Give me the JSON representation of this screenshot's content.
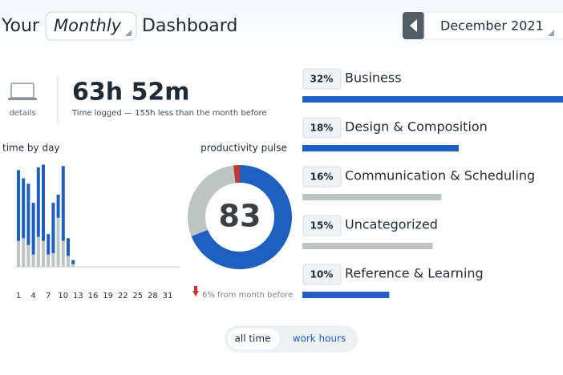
{
  "header": {
    "prefix": "Your",
    "period": "Monthly",
    "suffix": "Dashboard",
    "date": "December 2021"
  },
  "summary": {
    "details": "details",
    "total": "63h 52m",
    "note": "Time logged — 155h less than the month before"
  },
  "chart_data": [
    {
      "type": "bar",
      "stacked": true,
      "title": "time by day",
      "categories": [
        1,
        null,
        null,
        4,
        null,
        null,
        7,
        null,
        null,
        10,
        null,
        null,
        13,
        null,
        null,
        16,
        null,
        null,
        19,
        null,
        null,
        22,
        null,
        null,
        25,
        null,
        null,
        28,
        null,
        null,
        31
      ],
      "series": [
        {
          "color": "#bcc5c2",
          "values": [
            1.9,
            2.1,
            1.6,
            0.9,
            2.2,
            1.9,
            0.9,
            1.0,
            3.6,
            1.9,
            0.8,
            0.2,
            0,
            0,
            0,
            0,
            0,
            0,
            0,
            0,
            0,
            0,
            0,
            0,
            0,
            0,
            0,
            0,
            0,
            0,
            0
          ]
        },
        {
          "color": "#1f5fc0",
          "values": [
            5.2,
            4.4,
            4.5,
            3.8,
            5.1,
            5.6,
            1.5,
            3.7,
            1.7,
            5.5,
            1.3,
            0.3,
            0,
            0,
            0,
            0,
            0,
            0,
            0,
            0,
            0,
            0,
            0,
            0,
            0,
            0,
            0,
            0,
            0,
            0,
            0
          ]
        }
      ],
      "ylim": [
        0,
        8
      ]
    },
    {
      "type": "donut",
      "title": "productivity pulse",
      "center_value": 83,
      "values": [
        69,
        29,
        2
      ],
      "colors": [
        "#1f5fc0",
        "#bcc5c2",
        "#c0392b"
      ],
      "note": "6% from month before"
    },
    {
      "type": "bar",
      "orientation": "horizontal",
      "categories": [
        "Business",
        "Design & Composition",
        "Communication & Scheduling",
        "Uncategorized",
        "Reference & Learning"
      ],
      "values": [
        32,
        18,
        16,
        15,
        10
      ],
      "value_labels": [
        "32%",
        "18%",
        "16%",
        "15%",
        "10%"
      ],
      "colors": [
        "#1f5fc0",
        "#1f5fc0",
        "#bcc5c2",
        "#bcc5c2",
        "#1f5fc0"
      ],
      "xlim": [
        0,
        30
      ]
    }
  ],
  "toggle": {
    "options": [
      "all time",
      "work hours"
    ]
  }
}
